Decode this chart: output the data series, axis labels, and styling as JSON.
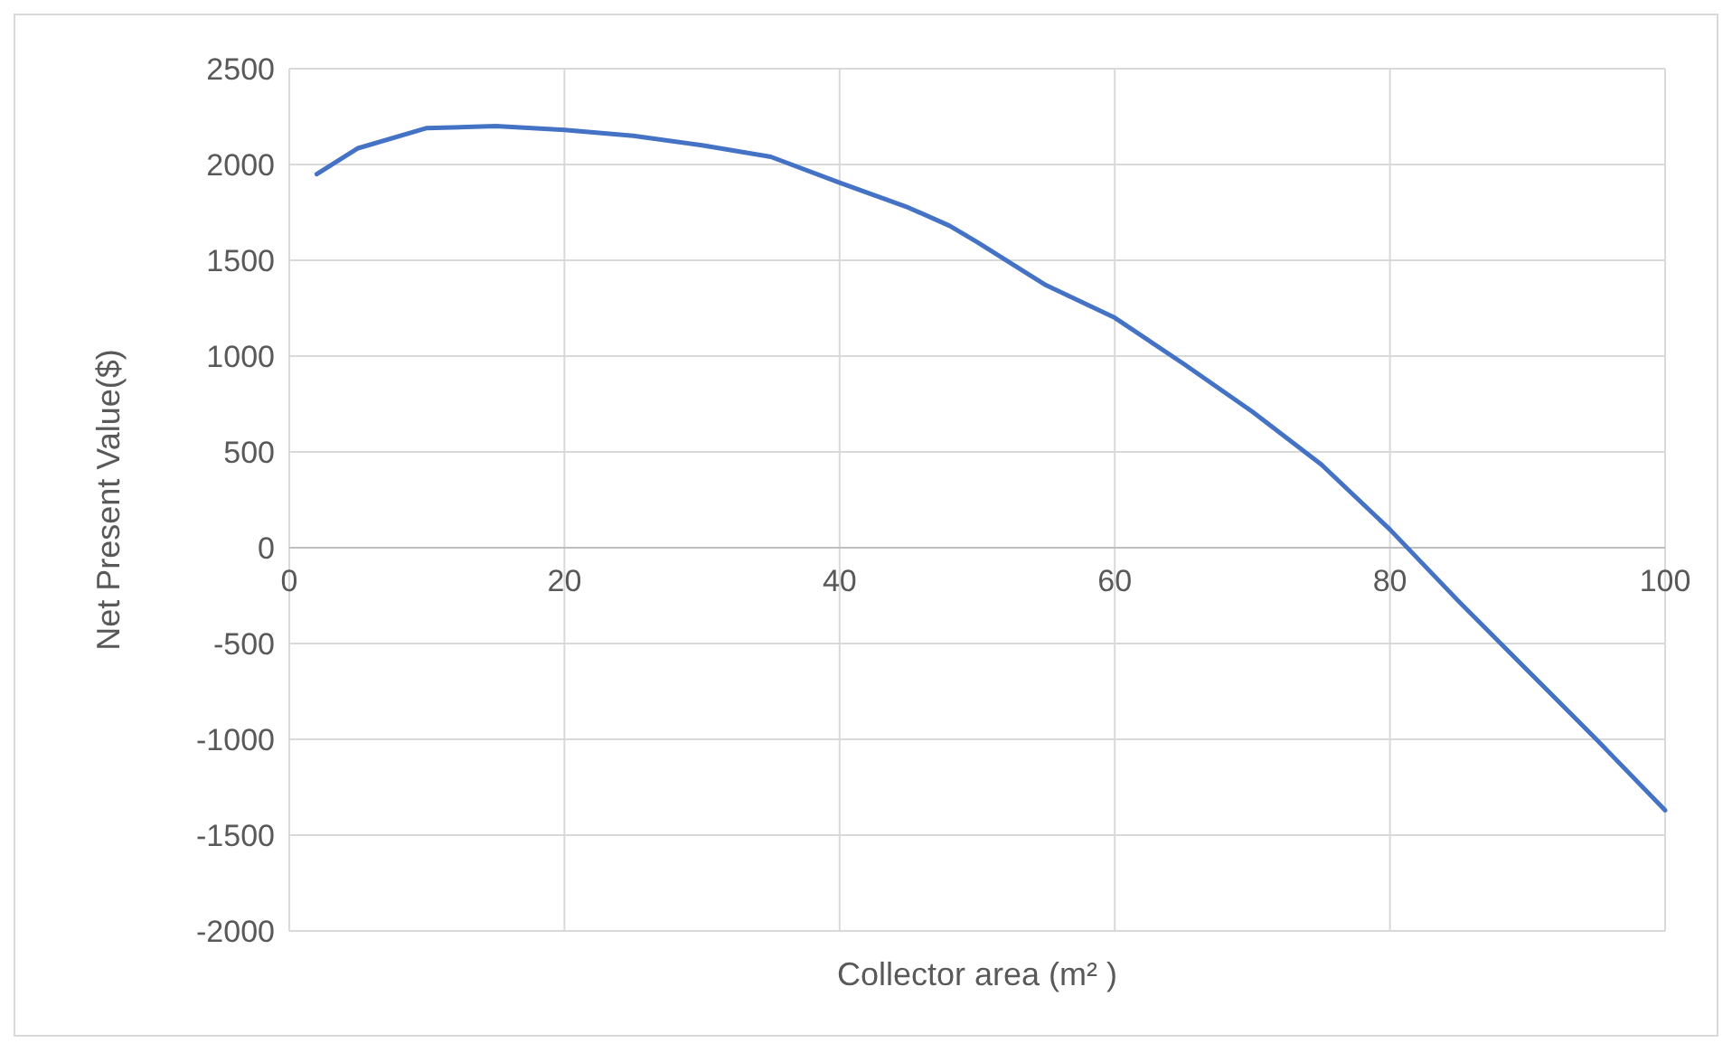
{
  "chart_data": {
    "type": "line",
    "xlabel": "Collector area (m² )",
    "ylabel": "Net  Present Value($)",
    "x": [
      2,
      5,
      10,
      15,
      20,
      25,
      30,
      35,
      40,
      45,
      48,
      50,
      55,
      60,
      65,
      70,
      75,
      80,
      85,
      90,
      95,
      100
    ],
    "series": [
      {
        "color": "#4472c4",
        "values": [
          1950,
          2085,
          2190,
          2200,
          2180,
          2150,
          2100,
          2040,
          1905,
          1775,
          1680,
          1595,
          1370,
          1200,
          960,
          710,
          435,
          95,
          -280,
          -640,
          -1000,
          -1370
        ]
      }
    ],
    "xlim": [
      0,
      100
    ],
    "xticks": [
      0,
      20,
      40,
      60,
      80,
      100
    ],
    "ylim": [
      -2000,
      2500
    ],
    "yticks": [
      -2000,
      -1500,
      -1000,
      -500,
      0,
      500,
      1000,
      1500,
      2000,
      2500
    ],
    "grid": true,
    "marker": "none",
    "line_style": "solid"
  }
}
